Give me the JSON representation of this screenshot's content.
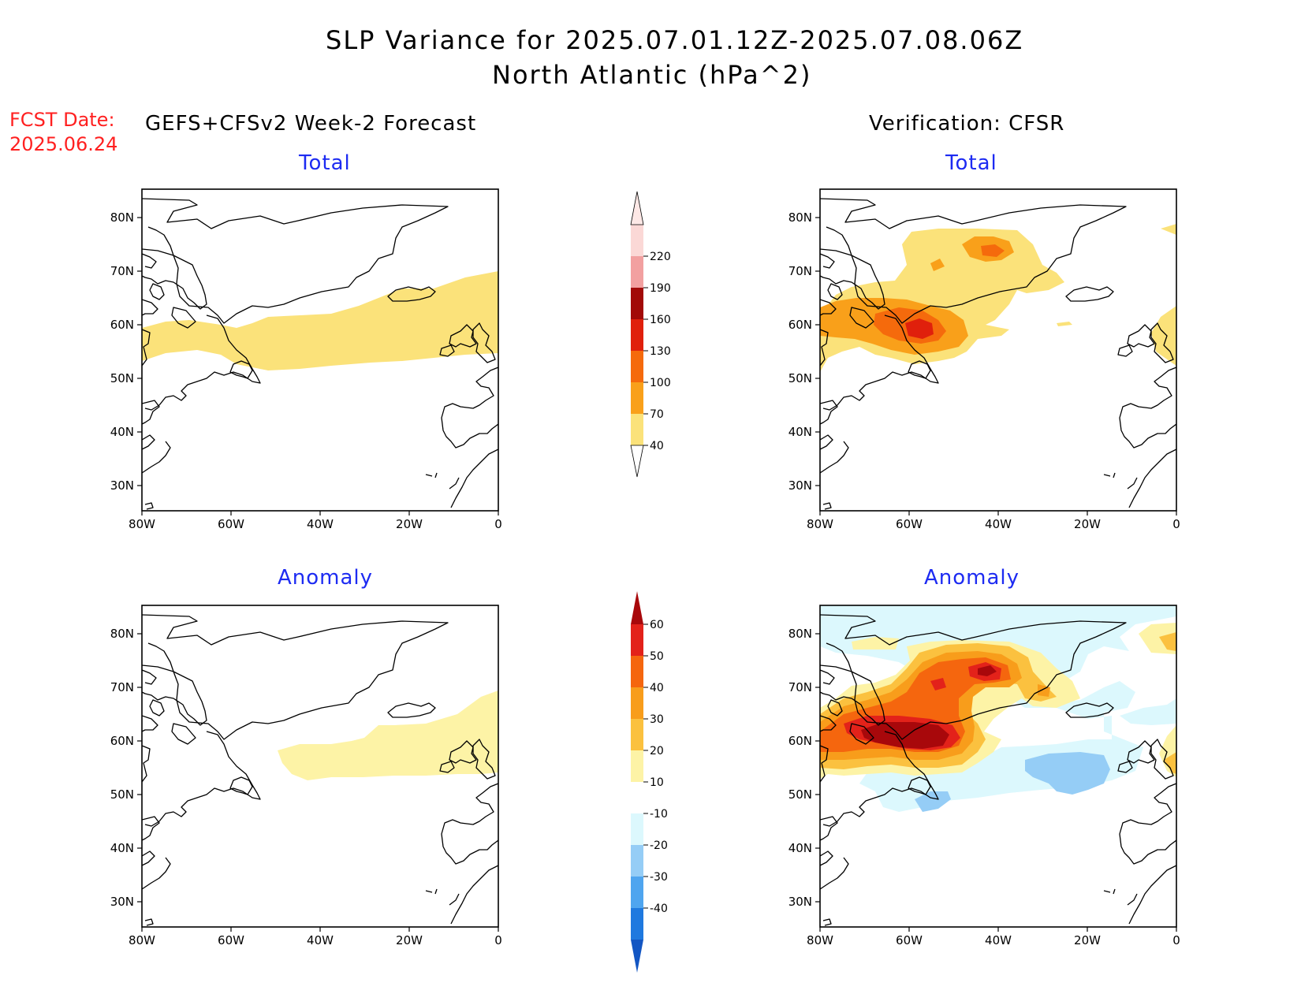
{
  "header": {
    "title": "SLP Variance for 2025.07.01.12Z-2025.07.08.06Z",
    "subtitle": "North Atlantic (hPa^2)"
  },
  "fcst_date": {
    "label": "FCST Date:",
    "value": "2025.06.24"
  },
  "columns": {
    "left": "GEFS+CFSv2 Week-2 Forecast",
    "right": "Verification: CFSR"
  },
  "panel_titles": {
    "total": "Total",
    "anomaly": "Anomaly"
  },
  "axes": {
    "lon_ticks": [
      "80W",
      "60W",
      "40W",
      "20W",
      "0"
    ],
    "lat_ticks": [
      "80N",
      "70N",
      "60N",
      "50N",
      "40N",
      "30N"
    ]
  },
  "colorbars": {
    "total": {
      "levels": [
        "40",
        "70",
        "100",
        "130",
        "160",
        "190",
        "220"
      ],
      "colors": [
        "#fbe27a",
        "#f9a01a",
        "#f56a0c",
        "#e0200c",
        "#a20a08",
        "#f2a0a0",
        "#fbd8d6"
      ]
    },
    "anomaly": {
      "levels": [
        "60",
        "50",
        "40",
        "30",
        "20",
        "10",
        "-10",
        "-20",
        "-30",
        "-40"
      ],
      "colors": [
        "#a8080b",
        "#e3221a",
        "#f5660e",
        "#f89d1b",
        "#fbc13f",
        "#fdf3a6",
        "#ffffff",
        "#dcf8fd",
        "#95cdf6",
        "#4fa5ef",
        "#1f79df",
        "#1356c3"
      ]
    }
  },
  "colors": {
    "title_blue": "#1d2bf2",
    "fcst_red": "#ff2020",
    "coast": "#000000"
  }
}
